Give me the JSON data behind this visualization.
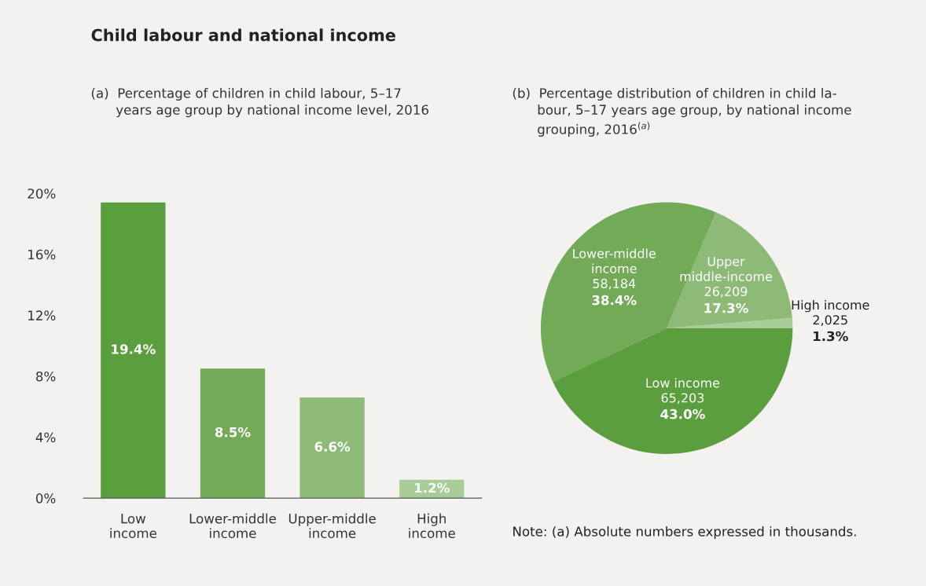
{
  "chart_data": [
    {
      "type": "bar",
      "title": "Child labour and national income",
      "subtitle": "(a)  Percentage of children in child labour, 5–17\n      years age group by national income level, 2016",
      "categories": [
        "Low\nincome",
        "Lower-middle\nincome",
        "Upper-middle\nincome",
        "High\nincome"
      ],
      "values": [
        19.4,
        8.5,
        6.6,
        1.2
      ],
      "value_labels": [
        "19.4%",
        "8.5%",
        "6.6%",
        "1.2%"
      ],
      "colors": [
        "#5a9e3e",
        "#72aa57",
        "#8dbb77",
        "#a9cd99"
      ],
      "ylim": [
        0,
        20
      ],
      "yticks": [
        {
          "value": 0,
          "label": "0%"
        },
        {
          "value": 4,
          "label": "4%"
        },
        {
          "value": 8,
          "label": "8%"
        },
        {
          "value": 12,
          "label": "12%"
        },
        {
          "value": 16,
          "label": "16%"
        },
        {
          "value": 20,
          "label": "20%"
        }
      ],
      "grid": false,
      "legend": false
    },
    {
      "type": "pie",
      "title": "(b)  Percentage distribution of children in child la-\n      bour, 5–17 years age group, by national income\n      grouping, 2016$^{(a)}$",
      "categories": [
        "High income",
        "Upper\nmiddle-income",
        "Lower-middle\nincome",
        "Low income"
      ],
      "values": [
        1.3,
        17.3,
        38.4,
        43.0
      ],
      "value_labels": [
        "2,025\n1.3%",
        "26,209\n17.3%",
        "58,184\n38.4%",
        "65,203\n43.0%"
      ],
      "colors": [
        "#a9cd99",
        "#8dbb77",
        "#72aa57",
        "#5a9e3e"
      ],
      "legend": false,
      "annotations": [
        "Note: (a) Absolute numbers expressed in thousands."
      ]
    }
  ]
}
